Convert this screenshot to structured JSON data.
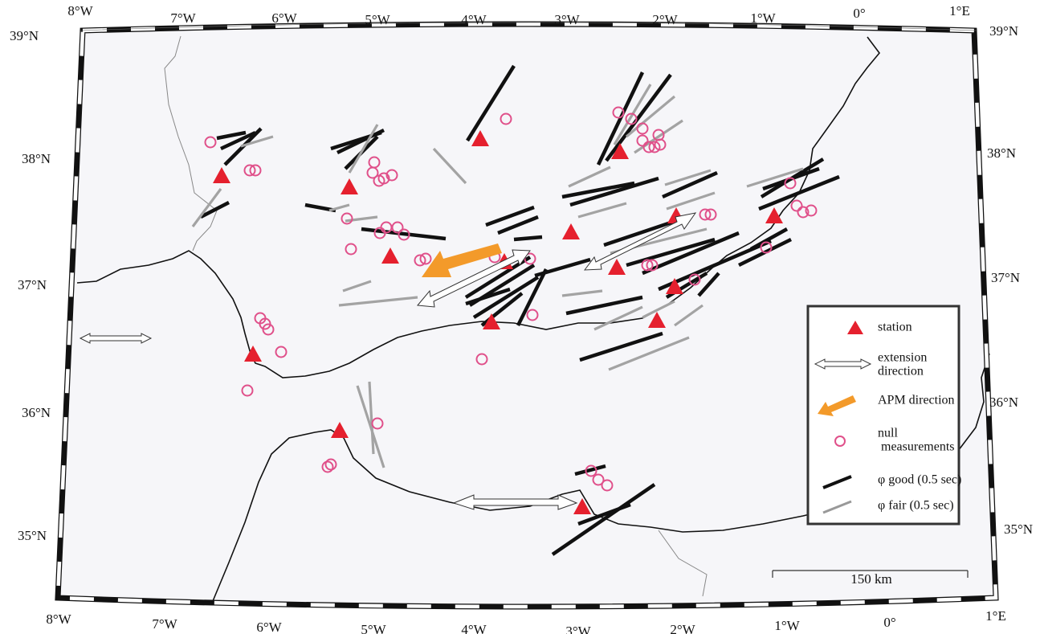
{
  "map": {
    "top_labels": [
      "8°W",
      "7°W",
      "6°W",
      "5°W",
      "4°W",
      "3°W",
      "2°W",
      "1°W",
      "0°",
      "1°E"
    ],
    "bottom_labels": [
      "8°W",
      "7°W",
      "6°W",
      "5°W",
      "4°W",
      "3°W",
      "2°W",
      "1°W",
      "0°",
      "1°E"
    ],
    "left_labels": [
      "39°N",
      "38°N",
      "37°N",
      "36°N",
      "35°N"
    ],
    "right_labels": [
      "39°N",
      "38°N",
      "37°N",
      "36°N",
      "35°N"
    ],
    "legend": [
      {
        "lines": [
          "station"
        ]
      },
      {
        "lines": [
          "extension",
          "direction"
        ]
      },
      {
        "lines": [
          "APM direction"
        ]
      },
      {
        "lines": [
          "null",
          "measurements"
        ]
      },
      {
        "lines": [
          "φ good (0.5 sec)"
        ]
      },
      {
        "lines": [
          "φ fair (0.5 sec)"
        ]
      }
    ],
    "scale_bar": "150 km"
  }
}
